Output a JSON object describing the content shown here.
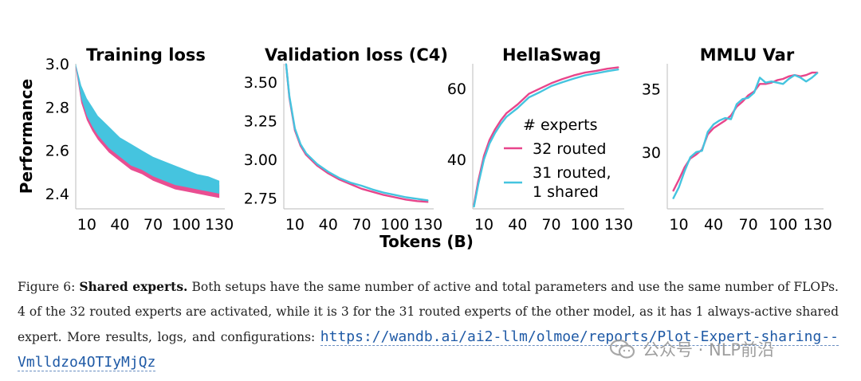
{
  "chart_data": [
    {
      "type": "line",
      "title": "Training loss",
      "ylabel": "Performance",
      "xlabel": "",
      "xlim": [
        0,
        135
      ],
      "ylim": [
        2.33,
        3.0
      ],
      "xticks": [
        10,
        40,
        70,
        100,
        130
      ],
      "yticks": [
        2.4,
        2.6,
        2.8,
        3.0
      ],
      "ytick_labels": [
        "2.4",
        "2.6",
        "2.8",
        "3.0"
      ],
      "band": true,
      "series": [
        {
          "name": "32 routed",
          "color": "#e8458b",
          "x": [
            0,
            5,
            10,
            15,
            20,
            30,
            40,
            50,
            60,
            70,
            80,
            90,
            100,
            110,
            120,
            130
          ],
          "low": [
            2.98,
            2.82,
            2.74,
            2.69,
            2.65,
            2.59,
            2.55,
            2.51,
            2.49,
            2.46,
            2.44,
            2.42,
            2.41,
            2.4,
            2.39,
            2.38
          ],
          "high": [
            2.99,
            2.87,
            2.8,
            2.75,
            2.72,
            2.66,
            2.62,
            2.59,
            2.56,
            2.53,
            2.51,
            2.49,
            2.47,
            2.46,
            2.45,
            2.44
          ]
        },
        {
          "name": "31 routed, 1 shared",
          "color": "#45c4df",
          "x": [
            0,
            5,
            10,
            15,
            20,
            30,
            40,
            50,
            60,
            70,
            80,
            90,
            100,
            110,
            120,
            130
          ],
          "low": [
            2.99,
            2.84,
            2.76,
            2.71,
            2.67,
            2.61,
            2.57,
            2.53,
            2.51,
            2.48,
            2.46,
            2.44,
            2.43,
            2.42,
            2.41,
            2.4
          ],
          "high": [
            3.0,
            2.9,
            2.84,
            2.8,
            2.76,
            2.71,
            2.66,
            2.63,
            2.6,
            2.57,
            2.55,
            2.53,
            2.51,
            2.49,
            2.48,
            2.46
          ]
        }
      ]
    },
    {
      "type": "line",
      "title": "Validation loss (C4)",
      "ylabel": "",
      "xlabel": "",
      "xlim": [
        0,
        135
      ],
      "ylim": [
        2.68,
        3.62
      ],
      "xticks": [
        10,
        40,
        70,
        100,
        130
      ],
      "yticks": [
        2.75,
        3.0,
        3.25,
        3.5
      ],
      "ytick_labels": [
        "2.75",
        "3.00",
        "3.25",
        "3.50"
      ],
      "series": [
        {
          "name": "32 routed",
          "color": "#e8458b",
          "x": [
            2,
            5,
            10,
            15,
            20,
            30,
            40,
            50,
            60,
            70,
            80,
            90,
            100,
            110,
            120,
            130
          ],
          "y": [
            3.62,
            3.4,
            3.19,
            3.09,
            3.03,
            2.96,
            2.91,
            2.87,
            2.84,
            2.81,
            2.79,
            2.77,
            2.755,
            2.74,
            2.73,
            2.725
          ]
        },
        {
          "name": "31 routed, 1 shared",
          "color": "#45c4df",
          "x": [
            2,
            5,
            10,
            15,
            20,
            30,
            40,
            50,
            60,
            70,
            80,
            90,
            100,
            110,
            120,
            130
          ],
          "y": [
            3.62,
            3.41,
            3.2,
            3.1,
            3.04,
            2.97,
            2.92,
            2.88,
            2.85,
            2.83,
            2.805,
            2.785,
            2.77,
            2.755,
            2.745,
            2.735
          ]
        }
      ]
    },
    {
      "type": "line",
      "title": "HellaSwag",
      "ylabel": "",
      "xlabel": "Tokens (B)",
      "xlim": [
        0,
        135
      ],
      "ylim": [
        26,
        67
      ],
      "xticks": [
        10,
        40,
        70,
        100,
        130
      ],
      "yticks": [
        40,
        60
      ],
      "ytick_labels": [
        "40",
        "60"
      ],
      "legend": {
        "title": "# experts",
        "entries": [
          "32 routed",
          "31 routed,",
          "1 shared"
        ]
      },
      "series": [
        {
          "name": "32 routed",
          "color": "#e8458b",
          "x": [
            1,
            5,
            10,
            15,
            20,
            25,
            30,
            40,
            50,
            60,
            70,
            80,
            90,
            100,
            110,
            120,
            130
          ],
          "y": [
            27,
            34,
            41,
            45.5,
            48.5,
            51,
            53,
            55.5,
            58.5,
            60,
            61.5,
            62.7,
            63.7,
            64.5,
            65,
            65.6,
            66
          ]
        },
        {
          "name": "31 routed, 1 shared",
          "color": "#45c4df",
          "x": [
            1,
            5,
            10,
            15,
            20,
            25,
            30,
            40,
            50,
            60,
            70,
            80,
            90,
            100,
            110,
            120,
            130
          ],
          "y": [
            26.5,
            33,
            40,
            44.5,
            47.5,
            50,
            52,
            54.5,
            57.5,
            59,
            60.7,
            61.8,
            62.8,
            63.7,
            64.3,
            64.9,
            65.4
          ]
        }
      ]
    },
    {
      "type": "line",
      "title": "MMLU Var",
      "ylabel": "",
      "xlabel": "",
      "xlim": [
        0,
        135
      ],
      "ylim": [
        25.5,
        37
      ],
      "xticks": [
        10,
        40,
        70,
        100,
        130
      ],
      "yticks": [
        30,
        35
      ],
      "ytick_labels": [
        "30",
        "35"
      ],
      "series": [
        {
          "name": "32 routed",
          "color": "#e8458b",
          "x": [
            5,
            10,
            15,
            20,
            25,
            30,
            35,
            40,
            45,
            50,
            55,
            60,
            65,
            70,
            75,
            80,
            85,
            90,
            95,
            100,
            105,
            110,
            115,
            120,
            125,
            130
          ],
          "y": [
            26.9,
            27.8,
            28.8,
            29.5,
            29.8,
            30.2,
            31.4,
            31.9,
            32.2,
            32.5,
            32.9,
            33.6,
            34.0,
            34.5,
            34.8,
            35.4,
            35.4,
            35.5,
            35.7,
            35.8,
            36.0,
            36.1,
            36.0,
            36.1,
            36.3,
            36.3
          ]
        },
        {
          "name": "31 routed, 1 shared",
          "color": "#45c4df",
          "x": [
            5,
            10,
            15,
            20,
            25,
            30,
            35,
            40,
            45,
            50,
            55,
            60,
            65,
            70,
            75,
            80,
            85,
            90,
            95,
            100,
            105,
            110,
            115,
            120,
            125,
            130
          ],
          "y": [
            26.3,
            27.2,
            28.5,
            29.6,
            30.0,
            30.1,
            31.6,
            32.2,
            32.5,
            32.7,
            32.6,
            33.8,
            34.2,
            34.3,
            34.7,
            35.9,
            35.5,
            35.6,
            35.5,
            35.4,
            35.8,
            36.1,
            35.9,
            35.6,
            35.9,
            36.3
          ]
        }
      ]
    }
  ],
  "shared_xlabel": "Tokens (B)",
  "caption": {
    "prefix": "Figure 6:",
    "bold": "Shared experts.",
    "text": "Both setups have the same number of active and total parameters and use the same number of FLOPs. 4 of the 32 routed experts are activated, while it is 3 for the 31 routed experts of the other model, as it has 1 always-active shared expert. More results, logs, and configurations:",
    "link": "https://wandb.ai/ai2-llm/olmoe/reports/Plot-Expert-sharing--Vmlldzo4OTIyMjQz"
  },
  "watermark": {
    "text": "公众号 · NLP前沿",
    "icon": "wechat-icon"
  }
}
